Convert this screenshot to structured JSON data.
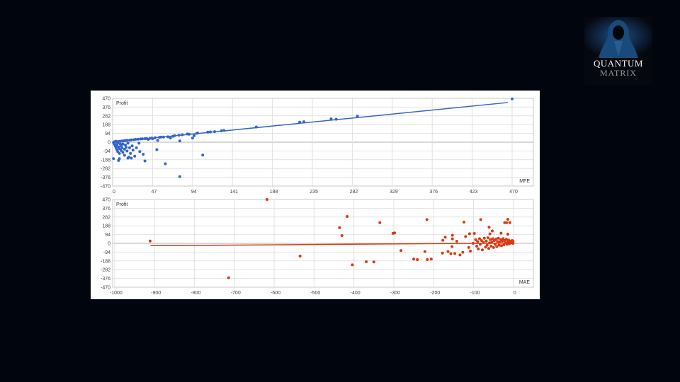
{
  "logo": {
    "line1": "QUANTUM",
    "line2": "MATRIX"
  },
  "chart_data": [
    {
      "type": "scatter",
      "ylabel": "Profit",
      "xlabel": "MFE",
      "color": "#3366cc",
      "xlim": [
        0,
        495
      ],
      "ylim": [
        -470,
        470
      ],
      "xticks": [
        "0",
        "47",
        "94",
        "141",
        "188",
        "235",
        "282",
        "329",
        "376",
        "423",
        "470"
      ],
      "yticks": [
        "470",
        "376",
        "282",
        "188",
        "94",
        "0",
        "-94",
        "-188",
        "-282",
        "-376",
        "-470"
      ],
      "grid": true,
      "trendline": [
        [
          0,
          2
        ],
        [
          465,
          425
        ]
      ],
      "points": [
        [
          1,
          -176
        ],
        [
          7,
          -196
        ],
        [
          8,
          -176
        ],
        [
          18,
          -171
        ],
        [
          22,
          -171
        ],
        [
          38,
          -201
        ],
        [
          52,
          -80
        ],
        [
          62,
          -231
        ],
        [
          79,
          -369
        ],
        [
          79,
          13
        ],
        [
          94,
          45
        ],
        [
          106,
          -138
        ],
        [
          47,
          38
        ],
        [
          57,
          55
        ],
        [
          71,
          63
        ],
        [
          78,
          75
        ],
        [
          88,
          88
        ],
        [
          99,
          95
        ],
        [
          112,
          108
        ],
        [
          120,
          113
        ],
        [
          131,
          126
        ],
        [
          169,
          163
        ],
        [
          220,
          214
        ],
        [
          225,
          219
        ],
        [
          257,
          250
        ],
        [
          263,
          245
        ],
        [
          288,
          280
        ],
        [
          470,
          464
        ],
        [
          1,
          -5
        ],
        [
          2,
          -20
        ],
        [
          2,
          5
        ],
        [
          3,
          -40
        ],
        [
          3,
          0
        ],
        [
          4,
          -60
        ],
        [
          4,
          10
        ],
        [
          5,
          -30
        ],
        [
          5,
          -80
        ],
        [
          6,
          -10
        ],
        [
          6,
          -100
        ],
        [
          7,
          -50
        ],
        [
          7,
          8
        ],
        [
          8,
          -70
        ],
        [
          8,
          -120
        ],
        [
          9,
          -20
        ],
        [
          9,
          10
        ],
        [
          10,
          -90
        ],
        [
          10,
          -40
        ],
        [
          11,
          12
        ],
        [
          11,
          -60
        ],
        [
          12,
          -110
        ],
        [
          12,
          -20
        ],
        [
          13,
          15
        ],
        [
          14,
          -75
        ],
        [
          14,
          -140
        ],
        [
          15,
          -30
        ],
        [
          15,
          18
        ],
        [
          16,
          -55
        ],
        [
          17,
          -95
        ],
        [
          17,
          20
        ],
        [
          18,
          -10
        ],
        [
          19,
          -160
        ],
        [
          20,
          22
        ],
        [
          20,
          -60
        ],
        [
          21,
          -120
        ],
        [
          22,
          25
        ],
        [
          23,
          -40
        ],
        [
          24,
          -85
        ],
        [
          25,
          27
        ],
        [
          26,
          -150
        ],
        [
          27,
          30
        ],
        [
          28,
          -60
        ],
        [
          30,
          32
        ],
        [
          31,
          -10
        ],
        [
          32,
          -100
        ],
        [
          33,
          35
        ],
        [
          35,
          36
        ],
        [
          36,
          -130
        ],
        [
          38,
          38
        ],
        [
          40,
          40
        ],
        [
          42,
          30
        ],
        [
          44,
          42
        ],
        [
          46,
          45
        ],
        [
          50,
          48
        ],
        [
          53,
          20
        ],
        [
          55,
          52
        ],
        [
          60,
          55
        ],
        [
          65,
          58
        ],
        [
          68,
          45
        ],
        [
          73,
          70
        ],
        [
          82,
          80
        ],
        [
          90,
          85
        ],
        [
          96,
          70
        ],
        [
          100,
          98
        ],
        [
          115,
          110
        ],
        [
          128,
          122
        ]
      ]
    },
    {
      "type": "scatter",
      "ylabel": "Profit",
      "xlabel": "MAE",
      "color": "#dc3912",
      "xlim": [
        -1005,
        50
      ],
      "ylim": [
        -470,
        470
      ],
      "xticks": [
        "-1000",
        "-900",
        "-800",
        "-700",
        "-600",
        "-500",
        "-400",
        "-300",
        "-200",
        "-100",
        "0"
      ],
      "yticks": [
        "470",
        "376",
        "282",
        "188",
        "94",
        "0",
        "-94",
        "-188",
        "-282",
        "-376",
        "-470"
      ],
      "grid": true,
      "trendline": [
        [
          -910,
          -25
        ],
        [
          0,
          3
        ]
      ],
      "points": [
        [
          -911,
          25
        ],
        [
          -618,
          470
        ],
        [
          -714,
          -369
        ],
        [
          -535,
          -136
        ],
        [
          -417,
          288
        ],
        [
          -436,
          169
        ],
        [
          -430,
          83
        ],
        [
          -404,
          -230
        ],
        [
          -369,
          -197
        ],
        [
          -350,
          -199
        ],
        [
          -335,
          222
        ],
        [
          -302,
          107
        ],
        [
          -298,
          112
        ],
        [
          -282,
          -78
        ],
        [
          -250,
          -169
        ],
        [
          -241,
          -174
        ],
        [
          -222,
          -88
        ],
        [
          -217,
          255
        ],
        [
          -216,
          -174
        ],
        [
          -206,
          -169
        ],
        [
          -177,
          33
        ],
        [
          -178,
          -104
        ],
        [
          -171,
          65
        ],
        [
          -164,
          -88
        ],
        [
          -157,
          -111
        ],
        [
          -153,
          86
        ],
        [
          -153,
          48
        ],
        [
          -154,
          -35
        ],
        [
          -147,
          -109
        ],
        [
          -142,
          23
        ],
        [
          -134,
          -124
        ],
        [
          -127,
          -96
        ],
        [
          -124,
          227
        ],
        [
          -120,
          73
        ],
        [
          -112,
          -45
        ],
        [
          -110,
          103
        ],
        [
          -108,
          -83
        ],
        [
          -101,
          0
        ],
        [
          -98,
          106
        ],
        [
          -82,
          255
        ],
        [
          -61,
          172
        ],
        [
          -59,
          101
        ],
        [
          -53,
          134
        ],
        [
          -31,
          109
        ],
        [
          -22,
          222
        ],
        [
          -17,
          222
        ],
        [
          -14,
          258
        ],
        [
          -9,
          222
        ],
        [
          -14,
          98
        ],
        [
          -95,
          40
        ],
        [
          -92,
          -30
        ],
        [
          -90,
          20
        ],
        [
          -88,
          -60
        ],
        [
          -85,
          50
        ],
        [
          -83,
          -10
        ],
        [
          -80,
          30
        ],
        [
          -78,
          -70
        ],
        [
          -75,
          10
        ],
        [
          -73,
          55
        ],
        [
          -70,
          -40
        ],
        [
          -68,
          25
        ],
        [
          -66,
          -20
        ],
        [
          -64,
          60
        ],
        [
          -62,
          -55
        ],
        [
          -60,
          5
        ],
        [
          -58,
          40
        ],
        [
          -56,
          -30
        ],
        [
          -54,
          15
        ],
        [
          -52,
          50
        ],
        [
          -50,
          -45
        ],
        [
          -48,
          30
        ],
        [
          -46,
          -10
        ],
        [
          -44,
          45
        ],
        [
          -42,
          -35
        ],
        [
          -40,
          20
        ],
        [
          -38,
          55
        ],
        [
          -36,
          -20
        ],
        [
          -34,
          10
        ],
        [
          -32,
          40
        ],
        [
          -30,
          -25
        ],
        [
          -28,
          25
        ],
        [
          -26,
          50
        ],
        [
          -24,
          -15
        ],
        [
          -22,
          30
        ],
        [
          -20,
          5
        ],
        [
          -18,
          45
        ],
        [
          -16,
          -10
        ],
        [
          -14,
          20
        ],
        [
          -12,
          35
        ],
        [
          -10,
          -5
        ],
        [
          -8,
          15
        ],
        [
          -6,
          25
        ],
        [
          -4,
          5
        ],
        [
          -3,
          30
        ],
        [
          -2,
          10
        ],
        [
          -1,
          0
        ],
        [
          -1,
          20
        ]
      ]
    }
  ]
}
